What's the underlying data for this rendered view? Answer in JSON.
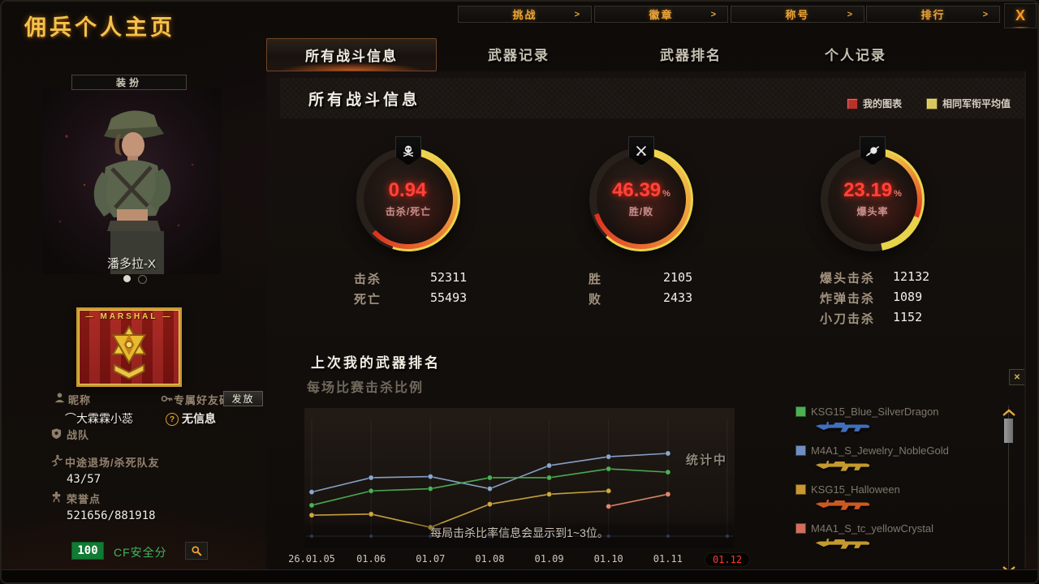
{
  "window": {
    "title": "佣兵个人主页",
    "close_label": "X"
  },
  "top_nav": {
    "arrow": ">",
    "items": [
      {
        "label": "挑战"
      },
      {
        "label": "徽章"
      },
      {
        "label": "称号"
      },
      {
        "label": "排行"
      }
    ]
  },
  "tabs": [
    {
      "label": "所有战斗信息",
      "active": true
    },
    {
      "label": "武器记录",
      "active": false
    },
    {
      "label": "武器排名",
      "active": false
    },
    {
      "label": "个人记录",
      "active": false
    }
  ],
  "profile": {
    "dress_button": "装扮",
    "character_name": "潘多拉-X",
    "rank_badge": "MARSHAL",
    "fields": {
      "nickname_label": "昵称",
      "nickname_value": "⌒大霖霖小蕊",
      "friend_code_label": "专属好友码",
      "friend_code_button": "发放",
      "no_info": "无信息",
      "clan_label": "战队",
      "quit_label": "中途退场/杀死队友",
      "quit_value": "43/57",
      "honor_label": "荣誉点",
      "honor_value": "521656/881918",
      "safety_score": "100",
      "safety_label": "CF安全分"
    }
  },
  "main": {
    "section_title": "所有战斗信息",
    "legend": [
      {
        "label": "我的图表",
        "color": "#b8322a"
      },
      {
        "label": "相同军衔平均值",
        "color": "#d9c75e"
      }
    ],
    "gauges": [
      {
        "icon": "skull-crossbones",
        "value": "0.94",
        "unit": "",
        "label": "击杀/死亡",
        "my_pct": 63,
        "avg_pct": 55
      },
      {
        "icon": "crossed-rifles",
        "value": "46.39",
        "unit": "%",
        "label": "胜/败",
        "my_pct": 70,
        "avg_pct": 62
      },
      {
        "icon": "headshot",
        "value": "23.19",
        "unit": "%",
        "label": "爆头率",
        "my_pct": 31,
        "avg_pct": 47
      }
    ],
    "stat_groups": [
      {
        "rows": [
          {
            "label": "击杀",
            "value": "52311"
          },
          {
            "label": "死亡",
            "value": "55493"
          }
        ]
      },
      {
        "rows": [
          {
            "label": "胜",
            "value": "2105"
          },
          {
            "label": "败",
            "value": "2433"
          }
        ]
      },
      {
        "rows": [
          {
            "label": "爆头击杀",
            "value": "12132"
          },
          {
            "label": "炸弹击杀",
            "value": "1089"
          },
          {
            "label": "小刀击杀",
            "value": "1152"
          }
        ]
      }
    ],
    "weapon_section": {
      "title": "上次我的武器排名",
      "subtitle": "每场比赛击杀比例"
    }
  },
  "chart_data": {
    "type": "line",
    "title": "每场比赛击杀比例",
    "x": [
      "26.01.05",
      "01.06",
      "01.07",
      "01.08",
      "01.09",
      "01.10",
      "01.11",
      "01.12"
    ],
    "highlighted_x": "01.12",
    "ylim": [
      0,
      100
    ],
    "grid": "vertical-only",
    "annotation": "统计中",
    "note": "每局击杀比率信息会显示到1~3位。",
    "series": [
      {
        "name": "M4A1_S_Jewelry_NobleGold",
        "color": "#8ba7cc",
        "values": [
          40,
          53,
          54,
          43,
          64,
          72,
          75,
          null
        ]
      },
      {
        "name": "KSG15_Blue_SilverDragon",
        "color": "#4db054",
        "values": [
          28,
          41,
          43,
          53,
          53,
          61,
          58,
          null
        ]
      },
      {
        "name": "KSG15_Halloween",
        "color": "#cfa83f",
        "values": [
          19,
          20,
          8,
          29,
          38,
          41,
          null,
          null
        ]
      },
      {
        "name": "M4A1_S_tc_yellowCrystal",
        "color": "#e2876a",
        "values": [
          null,
          null,
          null,
          null,
          null,
          27,
          38,
          null
        ]
      }
    ]
  },
  "weapon_panel": {
    "close_label": "✕",
    "items": [
      {
        "name": "KSG15_Blue_SilverDragon",
        "swatch": "#4db054",
        "gun_color": "#3f6fbe"
      },
      {
        "name": "M4A1_S_Jewelry_NobleGold",
        "swatch": "#6f8fc0",
        "gun_color": "#c49a2e"
      },
      {
        "name": "KSG15_Halloween",
        "swatch": "#c8982f",
        "gun_color": "#cc5a20"
      },
      {
        "name": "M4A1_S_tc_yellowCrystal",
        "swatch": "#d0705c",
        "gun_color": "#c49a2e"
      }
    ]
  }
}
